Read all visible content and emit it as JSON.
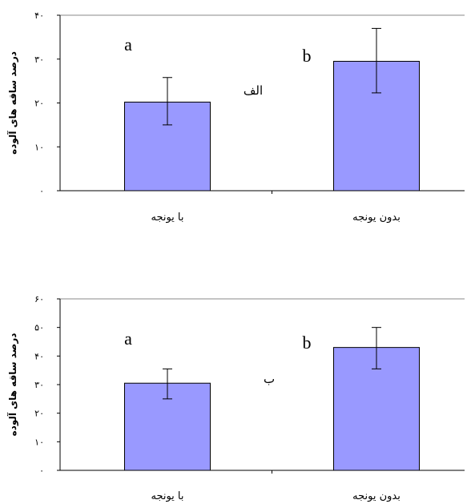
{
  "chart_data": [
    {
      "type": "bar",
      "panel_label": "الف",
      "ylabel": "درصد ساقه های آلوده",
      "categories": [
        "با یونجه",
        "بدون یونجه"
      ],
      "values": [
        20.2,
        29.5
      ],
      "error_low": [
        15.0,
        22.3
      ],
      "error_high": [
        25.8,
        37.0
      ],
      "significance": [
        "a",
        "b"
      ],
      "ylim": [
        0,
        40
      ],
      "yticks": [
        0,
        10,
        20,
        30,
        40
      ],
      "ytick_labels": [
        "۰",
        "۱۰",
        "۲۰",
        "۳۰",
        "۴۰"
      ],
      "bar_color": "#9999ff",
      "grid": false
    },
    {
      "type": "bar",
      "panel_label": "ب",
      "ylabel": "درصد ساقه های آلوده",
      "categories": [
        "با یونجه",
        "بدون یونجه"
      ],
      "values": [
        30.5,
        43.0
      ],
      "error_low": [
        25.0,
        35.5
      ],
      "error_high": [
        35.5,
        50.0
      ],
      "significance": [
        "a",
        "b"
      ],
      "ylim": [
        0,
        60
      ],
      "yticks": [
        0,
        10,
        20,
        30,
        40,
        50,
        60
      ],
      "ytick_labels": [
        "۰",
        "۱۰",
        "۲۰",
        "۳۰",
        "۴۰",
        "۵۰",
        "۶۰"
      ],
      "bar_color": "#9999ff",
      "grid": false
    }
  ]
}
